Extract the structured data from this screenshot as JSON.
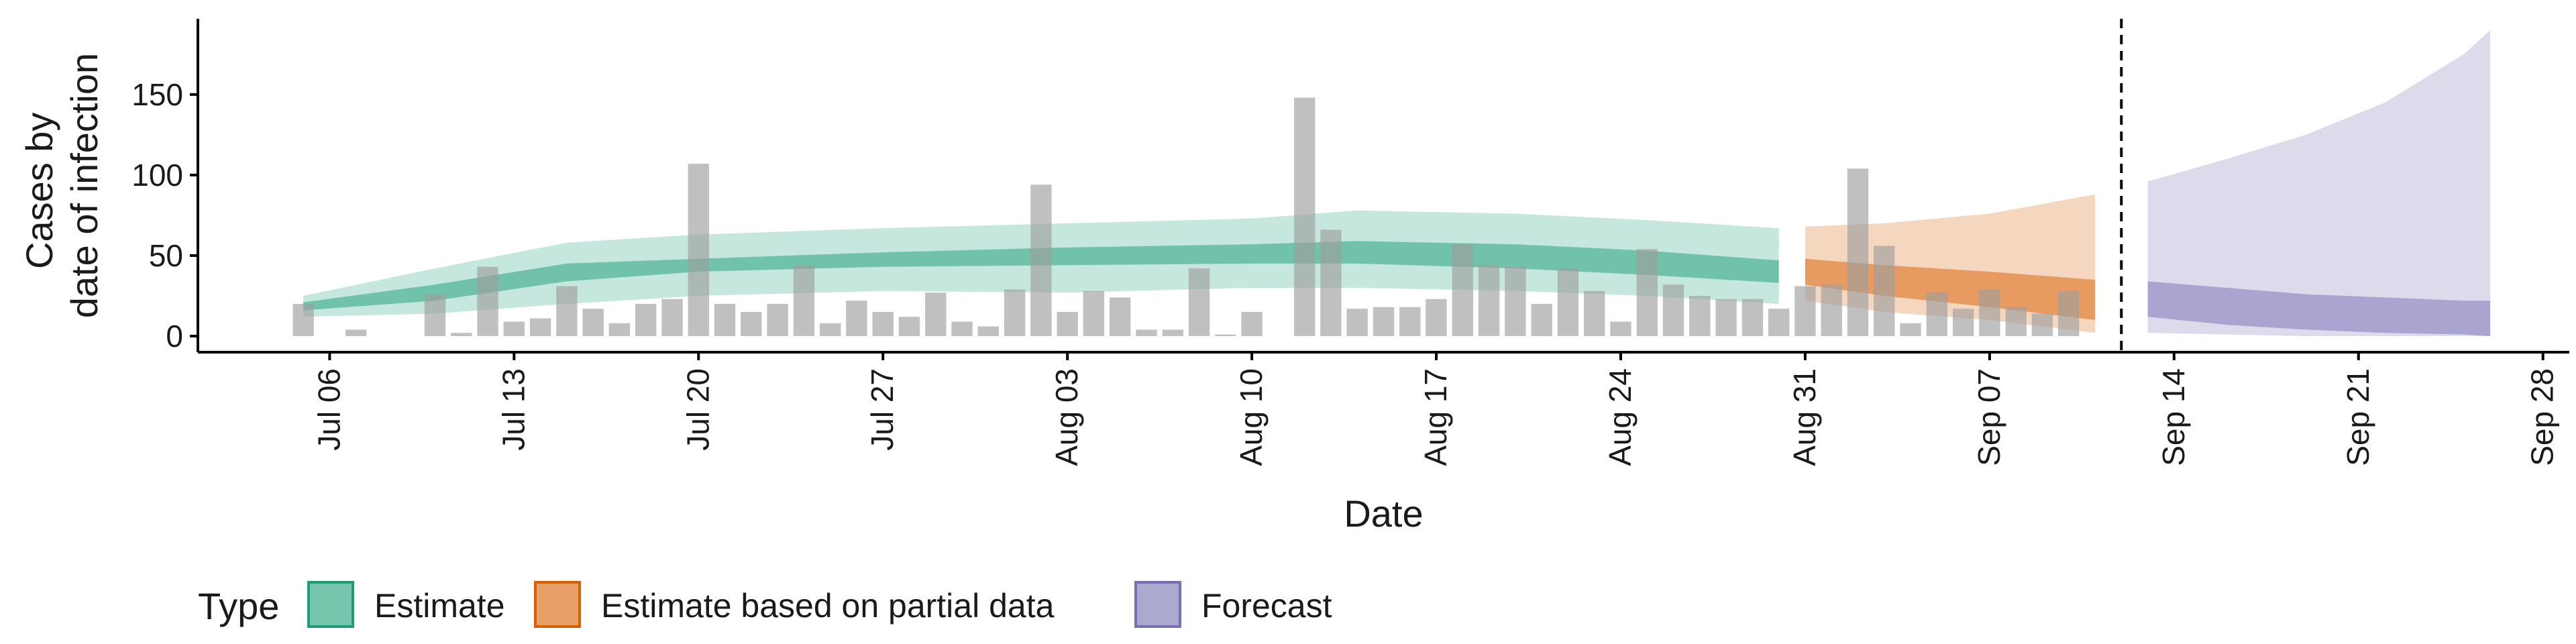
{
  "chart_data": {
    "type": "bar",
    "xlabel": "Date",
    "ylabel_lines": [
      "Cases by",
      "date of infection"
    ],
    "ylim": [
      -10,
      197
    ],
    "y_ticks": [
      0,
      50,
      100,
      150
    ],
    "x_range": [
      "2020-07-01",
      "2020-09-29"
    ],
    "x_ticks": [
      {
        "date": "2020-07-06",
        "label": "Jul 06"
      },
      {
        "date": "2020-07-13",
        "label": "Jul 13"
      },
      {
        "date": "2020-07-20",
        "label": "Jul 20"
      },
      {
        "date": "2020-07-27",
        "label": "Jul 27"
      },
      {
        "date": "2020-08-03",
        "label": "Aug 03"
      },
      {
        "date": "2020-08-10",
        "label": "Aug 10"
      },
      {
        "date": "2020-08-17",
        "label": "Aug 17"
      },
      {
        "date": "2020-08-24",
        "label": "Aug 24"
      },
      {
        "date": "2020-08-31",
        "label": "Aug 31"
      },
      {
        "date": "2020-09-07",
        "label": "Sep 07"
      },
      {
        "date": "2020-09-14",
        "label": "Sep 14"
      },
      {
        "date": "2020-09-21",
        "label": "Sep 21"
      },
      {
        "date": "2020-09-28",
        "label": "Sep 28"
      }
    ],
    "forecast_start_date": "2020-09-12",
    "colors": {
      "bars": "#9e9e9e",
      "estimate": "#1b9e77",
      "partial": "#d95f02",
      "forecast": "#7570b3",
      "vline": "#000000",
      "axis": "#000000"
    },
    "observed_cases": {
      "start_date": "2020-07-05",
      "values": [
        20,
        0,
        4,
        0,
        0,
        26,
        2,
        43,
        9,
        11,
        31,
        17,
        8,
        20,
        23,
        107,
        20,
        15,
        20,
        44,
        8,
        22,
        15,
        12,
        27,
        9,
        6,
        29,
        94,
        15,
        28,
        24,
        4,
        4,
        42,
        1,
        15,
        0,
        148,
        66,
        17,
        18,
        18,
        23,
        57,
        44,
        43,
        20,
        42,
        28,
        9,
        54,
        32,
        25,
        23,
        23,
        17,
        31,
        32,
        104,
        56,
        8,
        27,
        17,
        29,
        18,
        14,
        28
      ]
    },
    "bands": [
      {
        "name": "Estimate",
        "key": "estimate",
        "x": [
          "2020-07-05",
          "2020-07-10",
          "2020-07-15",
          "2020-07-20",
          "2020-07-27",
          "2020-08-03",
          "2020-08-10",
          "2020-08-14",
          "2020-08-20",
          "2020-08-25",
          "2020-08-30"
        ],
        "lower90": [
          12,
          14,
          20,
          25,
          28,
          27,
          30,
          30,
          28,
          25,
          20
        ],
        "upper90": [
          25,
          42,
          58,
          63,
          67,
          70,
          73,
          78,
          76,
          72,
          67
        ],
        "lower50": [
          16,
          22,
          34,
          40,
          43,
          44,
          45,
          45,
          42,
          38,
          33
        ],
        "upper50": [
          21,
          32,
          45,
          48,
          52,
          55,
          57,
          59,
          57,
          53,
          47
        ]
      },
      {
        "name": "Estimate based on partial data",
        "key": "partial",
        "x": [
          "2020-08-31",
          "2020-09-03",
          "2020-09-07",
          "2020-09-11"
        ],
        "lower90": [
          22,
          15,
          10,
          2
        ],
        "upper90": [
          68,
          70,
          76,
          88
        ],
        "lower50": [
          32,
          25,
          18,
          10
        ],
        "upper50": [
          48,
          44,
          40,
          35
        ]
      },
      {
        "name": "Forecast",
        "key": "forecast",
        "x": [
          "2020-09-13",
          "2020-09-16",
          "2020-09-19",
          "2020-09-22",
          "2020-09-25",
          "2020-09-26"
        ],
        "lower90": [
          2,
          1,
          0,
          0,
          0,
          0
        ],
        "upper90": [
          96,
          110,
          125,
          145,
          175,
          190
        ],
        "lower50": [
          12,
          7,
          4,
          2,
          1,
          0
        ],
        "upper50": [
          34,
          30,
          26,
          24,
          22,
          22
        ]
      }
    ],
    "legend": {
      "title": "Type",
      "position": "bottom",
      "items": [
        {
          "label": "Estimate",
          "color": "#1b9e77"
        },
        {
          "label": "Estimate based on partial data",
          "color": "#d95f02"
        },
        {
          "label": "Forecast",
          "color": "#7570b3"
        }
      ]
    }
  }
}
